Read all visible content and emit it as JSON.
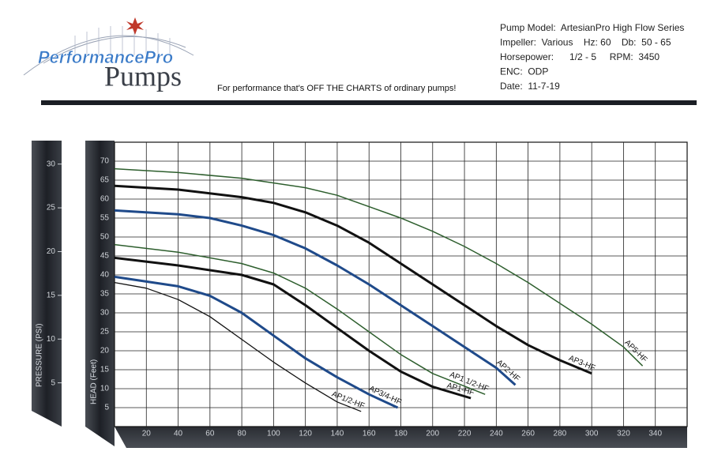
{
  "header": {
    "logo_top": "PerformancePro",
    "logo_bottom": "Pumps",
    "tagline": "For performance that's OFF THE CHARTS of ordinary pumps!",
    "specs": [
      "Pump Model:  ArtesianPro High Flow Series",
      "Impeller:  Various    Hz: 60    Db:  50 - 65",
      "Horsepower:      1/2 - 5     RPM:  3450",
      "ENC:  ODP",
      "Date:  11-7-19"
    ]
  },
  "chart_data": {
    "type": "line",
    "y_label": "HEAD (Feet)",
    "y2_label": "PRESSURE (PSI)",
    "xlim": [
      0,
      360
    ],
    "xticks": [
      20,
      40,
      60,
      80,
      100,
      120,
      140,
      160,
      180,
      200,
      220,
      240,
      260,
      280,
      300,
      320,
      340
    ],
    "ylim": [
      0,
      75
    ],
    "yticks": [
      5,
      10,
      15,
      20,
      25,
      30,
      35,
      40,
      45,
      50,
      55,
      60,
      65,
      70
    ],
    "y2lim": [
      0,
      32.5
    ],
    "y2ticks": [
      5,
      10,
      15,
      20,
      25,
      30
    ],
    "grid": true,
    "series": [
      {
        "name": "AP1/2-HF",
        "color": "#111111",
        "line_width": 1.3,
        "x": [
          0,
          20,
          40,
          60,
          80,
          100,
          120,
          140,
          155
        ],
        "values": [
          38,
          36.5,
          33.5,
          29,
          23,
          17,
          11.5,
          6.5,
          4
        ]
      },
      {
        "name": "AP3/4-HF",
        "color": "#1f4a8a",
        "line_width": 3,
        "x": [
          0,
          40,
          60,
          80,
          100,
          120,
          140,
          160,
          178
        ],
        "values": [
          39.5,
          37,
          34.5,
          30,
          24,
          18,
          13,
          8.5,
          5
        ]
      },
      {
        "name": "AP1-HF",
        "color": "#111111",
        "line_width": 3,
        "x": [
          0,
          40,
          80,
          100,
          120,
          140,
          160,
          180,
          200,
          224
        ],
        "values": [
          44.5,
          42.5,
          40,
          37.5,
          32,
          26,
          20,
          14.5,
          10.5,
          7.5
        ]
      },
      {
        "name": "AP1 1/2-HF",
        "color": "#2d5e2d",
        "line_width": 1.5,
        "x": [
          0,
          40,
          80,
          100,
          120,
          140,
          160,
          180,
          200,
          233
        ],
        "values": [
          48,
          46,
          43,
          40.5,
          36.5,
          31,
          25,
          19,
          14,
          8.5
        ]
      },
      {
        "name": "AP2-HF",
        "color": "#1f4a8a",
        "line_width": 3,
        "x": [
          0,
          40,
          60,
          80,
          100,
          120,
          140,
          160,
          180,
          200,
          220,
          240,
          252
        ],
        "values": [
          57,
          56,
          55,
          53,
          50.5,
          47,
          42.5,
          37.5,
          32,
          26.5,
          21,
          15.5,
          11
        ]
      },
      {
        "name": "AP3-HF",
        "color": "#111111",
        "line_width": 3,
        "x": [
          0,
          40,
          80,
          100,
          120,
          140,
          160,
          180,
          200,
          220,
          240,
          260,
          280,
          300
        ],
        "values": [
          63.5,
          62.5,
          60.5,
          59,
          56.5,
          53,
          48.5,
          43,
          37.5,
          32,
          26.5,
          21.5,
          17.5,
          14
        ]
      },
      {
        "name": "AP5-HF",
        "color": "#2d5e2d",
        "line_width": 1.5,
        "x": [
          0,
          40,
          80,
          120,
          140,
          160,
          180,
          200,
          220,
          240,
          260,
          280,
          300,
          320,
          332
        ],
        "values": [
          68,
          67,
          65.5,
          63,
          61,
          58,
          55,
          51.5,
          47.5,
          43,
          38,
          32.5,
          27,
          21,
          16
        ]
      }
    ]
  }
}
